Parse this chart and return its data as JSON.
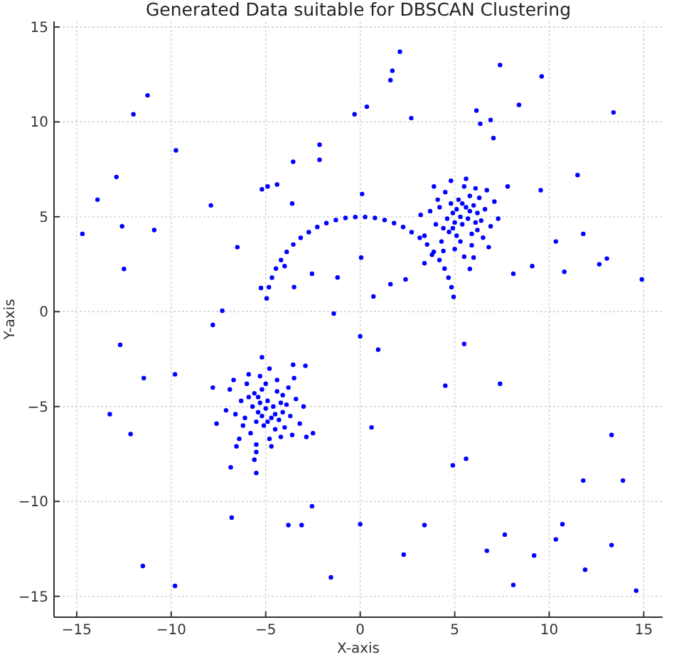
{
  "chart_data": {
    "type": "scatter",
    "title": "Generated Data suitable for DBSCAN Clustering",
    "xlabel": "X-axis",
    "ylabel": "Y-axis",
    "xlim": [
      -16.2,
      16.0
    ],
    "ylim": [
      -16.1,
      15.3
    ],
    "xticks": [
      -15,
      -10,
      -5,
      0,
      5,
      10,
      15
    ],
    "yticks": [
      -15,
      -10,
      -5,
      0,
      5,
      10,
      15
    ],
    "grid": true,
    "marker": "circle",
    "series": [
      {
        "color": "#0000ff",
        "x": [
          -14.7,
          -13.9,
          -12.9,
          -12.6,
          -12.5,
          -12.0,
          -11.25,
          -10.9,
          -9.75,
          -7.9,
          -6.5,
          -5.2,
          -4.9,
          -4.4,
          -3.55,
          -3.6,
          -2.15,
          -2.15,
          -5.25,
          -4.95,
          -4.0,
          -3.5,
          -2.55,
          -1.2,
          -1.4,
          -7.3,
          -7.8,
          -0.3,
          2.1,
          1.7,
          1.6,
          0.35,
          2.7,
          7.4,
          9.6,
          8.4,
          6.15,
          6.35,
          6.9,
          7.05,
          13.4,
          11.5,
          9.55,
          7.8,
          0.1,
          11.8,
          10.35,
          13.05,
          12.65,
          14.9,
          10.8,
          9.1,
          8.1,
          6.0,
          5.8,
          3.4,
          2.4,
          1.6,
          0.7,
          0.05
        ],
        "values": [
          4.1,
          5.9,
          7.1,
          4.5,
          2.25,
          10.4,
          11.4,
          4.3,
          8.5,
          5.6,
          3.4,
          6.45,
          6.6,
          6.7,
          7.9,
          5.7,
          8.8,
          8.0,
          1.25,
          0.7,
          2.4,
          1.3,
          2.0,
          1.8,
          -0.1,
          0.05,
          -0.7,
          10.4,
          13.7,
          12.7,
          12.2,
          10.8,
          10.2,
          13.0,
          12.4,
          10.9,
          10.6,
          9.9,
          10.1,
          9.15,
          10.5,
          7.2,
          6.4,
          6.6,
          6.2,
          4.1,
          3.7,
          2.8,
          2.5,
          1.7,
          2.1,
          2.4,
          2.0,
          2.85,
          2.25,
          2.55,
          1.7,
          1.45,
          0.8,
          2.85
        ]
      },
      {
        "color": "#0000ff",
        "x": [
          -12.7,
          -11.45,
          -9.8,
          -13.25,
          -12.15,
          -11.5,
          -9.8,
          -6.8,
          -6.85,
          -5.5,
          -5.6,
          -5.5,
          -6.55,
          -3.8,
          -3.1,
          -2.55,
          -1.55,
          -5.2,
          -7.8,
          -7.6,
          -2.5,
          -2.85,
          -3.55,
          -2.9
        ],
        "values": [
          -1.75,
          -3.5,
          -3.3,
          -5.4,
          -6.45,
          -13.4,
          -14.45,
          -10.85,
          -8.2,
          -8.5,
          -7.8,
          -7.4,
          -7.1,
          -11.25,
          -11.25,
          -10.25,
          -14.0,
          -2.4,
          -4.0,
          -5.9,
          -6.4,
          -6.6,
          -2.8,
          -2.85
        ]
      },
      {
        "color": "#0000ff",
        "x": [
          0.0,
          0.95,
          5.5,
          4.5,
          7.4,
          0.6,
          4.9,
          5.6,
          13.3,
          11.8,
          13.9,
          0.0,
          3.4,
          2.3,
          7.65,
          6.7,
          9.2,
          10.7,
          10.35,
          13.3,
          11.9,
          8.1,
          14.6
        ],
        "values": [
          -1.3,
          -2.0,
          -1.7,
          -3.9,
          -3.8,
          -6.1,
          -8.1,
          -7.75,
          -6.5,
          -8.9,
          -8.9,
          -11.2,
          -11.25,
          -12.8,
          -11.75,
          -12.6,
          -12.85,
          -11.2,
          -12.0,
          -12.3,
          -13.6,
          -14.4,
          -14.7
        ]
      },
      {
        "color": "#0000ff",
        "x": [
          4.94,
          4.83,
          4.67,
          4.46,
          4.19,
          3.89,
          3.54,
          3.15,
          2.72,
          2.27,
          1.79,
          1.29,
          0.78,
          0.26,
          -0.26,
          -0.78,
          -1.29,
          -1.79,
          -2.27,
          -2.72,
          -3.15,
          -3.54,
          -3.89,
          -4.19,
          -4.46,
          -4.67,
          -4.83
        ],
        "values": [
          0.78,
          1.29,
          1.79,
          2.27,
          2.72,
          3.15,
          3.54,
          3.89,
          4.19,
          4.46,
          4.67,
          4.83,
          4.94,
          4.99,
          4.99,
          4.94,
          4.83,
          4.67,
          4.46,
          4.19,
          3.89,
          3.54,
          3.15,
          2.72,
          2.27,
          1.79,
          1.29
        ]
      },
      {
        "color": "#0000ff",
        "x": [
          5.3,
          5.6,
          4.9,
          6.1,
          4.4,
          5.8,
          5.1,
          6.6,
          4.1,
          5.4,
          5.9,
          4.6,
          6.3,
          4.3,
          5.5,
          5.0,
          6.9,
          3.7,
          6.2,
          4.8,
          5.7,
          5.2,
          6.5,
          4.0,
          6.0,
          4.5,
          7.1,
          3.4,
          5.3,
          5.6,
          4.7,
          6.4,
          4.2,
          5.8,
          5.0,
          7.3,
          3.2,
          6.1,
          4.4,
          6.7,
          3.9,
          5.5,
          5.1,
          5.9,
          4.8,
          6.8,
          3.8,
          5.4,
          4.9,
          6.2
        ],
        "values": [
          5.0,
          5.5,
          5.2,
          4.7,
          4.4,
          6.1,
          4.0,
          5.4,
          5.9,
          4.6,
          4.1,
          4.9,
          6.0,
          3.7,
          6.6,
          3.3,
          4.5,
          5.3,
          5.2,
          5.7,
          4.9,
          5.9,
          3.9,
          4.6,
          5.6,
          6.3,
          5.8,
          4.0,
          3.7,
          7.0,
          4.2,
          4.8,
          5.5,
          5.3,
          4.7,
          4.9,
          5.1,
          6.5,
          3.2,
          6.4,
          6.6,
          2.9,
          5.4,
          3.5,
          6.9,
          3.4,
          3.0,
          5.7,
          4.4,
          4.3
        ]
      },
      {
        "color": "#0000ff",
        "x": [
          -5.0,
          -4.7,
          -5.4,
          -4.2,
          -5.9,
          -4.5,
          -5.2,
          -3.7,
          -6.2,
          -4.9,
          -4.4,
          -5.7,
          -4.0,
          -6.0,
          -4.8,
          -5.3,
          -3.4,
          -6.6,
          -4.1,
          -5.5,
          -4.6,
          -5.1,
          -3.8,
          -6.3,
          -4.3,
          -5.8,
          -3.2,
          -6.9,
          -5.0,
          -4.7,
          -5.6,
          -3.9,
          -6.1,
          -4.5,
          -5.3,
          -3.0,
          -7.1,
          -4.2,
          -5.9,
          -3.6,
          -6.4,
          -4.8,
          -5.2,
          -4.4,
          -5.5,
          -3.5,
          -6.7,
          -4.9,
          -5.4,
          -4.1
        ],
        "values": [
          -5.1,
          -5.6,
          -5.3,
          -4.8,
          -4.5,
          -6.2,
          -4.1,
          -5.5,
          -6.0,
          -4.7,
          -4.2,
          -5.0,
          -6.1,
          -3.8,
          -6.7,
          -3.4,
          -4.6,
          -5.4,
          -5.3,
          -5.8,
          -5.0,
          -6.0,
          -4.0,
          -4.7,
          -5.7,
          -6.4,
          -5.9,
          -4.1,
          -3.8,
          -7.1,
          -4.3,
          -4.9,
          -5.6,
          -5.4,
          -4.8,
          -5.0,
          -5.2,
          -6.6,
          -3.3,
          -6.5,
          -6.7,
          -3.0,
          -5.5,
          -3.6,
          -7.0,
          -3.5,
          -3.6,
          -5.8,
          -4.5,
          -4.4
        ]
      }
    ]
  }
}
